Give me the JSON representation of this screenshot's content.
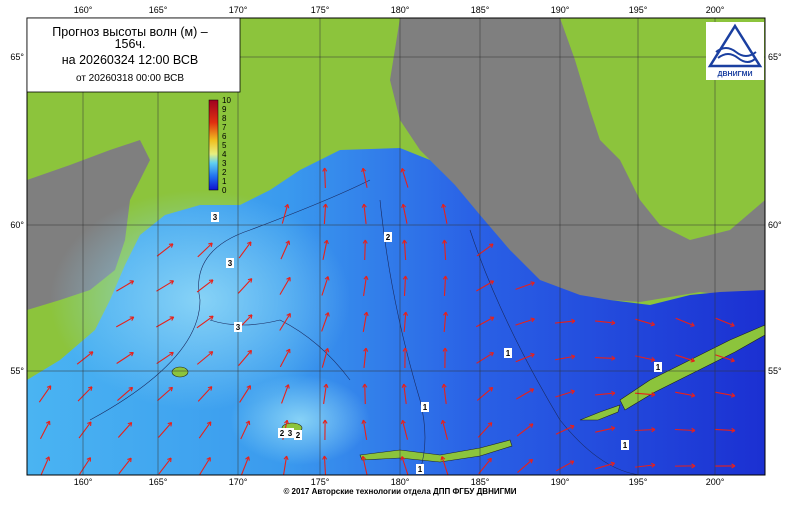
{
  "header": {
    "title_line1": "Прогноз высоты волн (м) –",
    "title_line2": "156ч.",
    "valid_time": "на 20260324 12:00 ВСВ",
    "issued": "от 20260318 00:00 ВСВ"
  },
  "colorbar": {
    "labels": [
      "0",
      "1",
      "2",
      "3",
      "4",
      "5",
      "6",
      "7",
      "8",
      "9",
      "10"
    ]
  },
  "grid": {
    "lon_labels": [
      "160°",
      "165°",
      "170°",
      "175°",
      "180°",
      "185°",
      "190°",
      "195°",
      "200°"
    ],
    "lat_labels": [
      "65°",
      "60°",
      "55°"
    ]
  },
  "contour_labels": [
    "3",
    "3",
    "3",
    "2",
    "1",
    "1",
    "2",
    "1",
    "1",
    "1",
    "3",
    "2"
  ],
  "logo": {
    "text": "ДВНИГМИ"
  },
  "footer": "© 2017 Авторские технологии отдела ДПП ФГБУ ДВНИГМИ"
}
